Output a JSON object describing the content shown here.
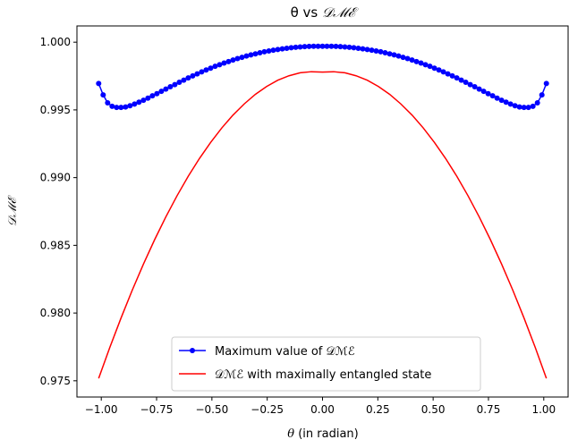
{
  "chart_data": {
    "type": "line",
    "title": {
      "prefix": "θ vs ",
      "symbol": "𝒟ℳℰ"
    },
    "xlabel": {
      "symbol": "θ",
      "text": " (in  radian)"
    },
    "ylabel": "𝒟ℳℰ",
    "xlim": [
      -1.11,
      1.11
    ],
    "ylim": [
      0.9738,
      1.0012
    ],
    "xticks": [
      -1.0,
      -0.75,
      -0.5,
      -0.25,
      0.0,
      0.25,
      0.5,
      0.75,
      1.0
    ],
    "xtick_labels": [
      "−1.00",
      "−0.75",
      "−0.50",
      "−0.25",
      "0.00",
      "0.25",
      "0.50",
      "0.75",
      "1.00"
    ],
    "yticks": [
      0.975,
      0.98,
      0.985,
      0.99,
      0.995,
      1.0
    ],
    "ytick_labels": [
      "0.975",
      "0.980",
      "0.985",
      "0.990",
      "0.995",
      "1.000"
    ],
    "grid": false,
    "legend_position": "lower-center",
    "series": [
      {
        "name": "Maximum value of 𝒟ℳℰ",
        "color": "#0000ff",
        "style": "line-with-markers",
        "x": [
          -1.0118,
          -0.9915,
          -0.9713,
          -0.951,
          -0.9308,
          -0.9106,
          -0.8903,
          -0.8701,
          -0.8498,
          -0.8296,
          -0.8094,
          -0.7891,
          -0.7689,
          -0.7486,
          -0.7284,
          -0.7082,
          -0.6879,
          -0.6677,
          -0.6474,
          -0.6272,
          -0.607,
          -0.5867,
          -0.5665,
          -0.5462,
          -0.526,
          -0.5058,
          -0.4855,
          -0.4653,
          -0.445,
          -0.4248,
          -0.4046,
          -0.3843,
          -0.3641,
          -0.3438,
          -0.3236,
          -0.3034,
          -0.2831,
          -0.2629,
          -0.2426,
          -0.2224,
          -0.2022,
          -0.1819,
          -0.1617,
          -0.1414,
          -0.1212,
          -0.101,
          -0.0807,
          -0.0605,
          -0.0402,
          -0.02,
          0.0,
          0.02,
          0.0402,
          0.0605,
          0.0807,
          0.101,
          0.1212,
          0.1414,
          0.1617,
          0.1819,
          0.2022,
          0.2224,
          0.2426,
          0.2629,
          0.2831,
          0.3034,
          0.3236,
          0.3438,
          0.3641,
          0.3843,
          0.4046,
          0.4248,
          0.445,
          0.4653,
          0.4855,
          0.5058,
          0.526,
          0.5462,
          0.5665,
          0.5867,
          0.607,
          0.6272,
          0.6474,
          0.6677,
          0.6879,
          0.7082,
          0.7284,
          0.7486,
          0.7689,
          0.7891,
          0.8094,
          0.8296,
          0.8498,
          0.8701,
          0.8903,
          0.9106,
          0.9308,
          0.951,
          0.9713,
          0.9915,
          1.0118
        ],
        "y": [
          0.99695,
          0.99611,
          0.99552,
          0.99527,
          0.99518,
          0.99518,
          0.99522,
          0.99531,
          0.99543,
          0.99557,
          0.99571,
          0.99587,
          0.99604,
          0.9962,
          0.99637,
          0.99654,
          0.99671,
          0.99687,
          0.99704,
          0.9972,
          0.99736,
          0.99751,
          0.99766,
          0.99781,
          0.99795,
          0.99808,
          0.99822,
          0.99834,
          0.99846,
          0.99857,
          0.99868,
          0.99879,
          0.99888,
          0.99898,
          0.99906,
          0.99914,
          0.99922,
          0.99929,
          0.99935,
          0.99941,
          0.99946,
          0.99951,
          0.99955,
          0.99959,
          0.99962,
          0.99965,
          0.99967,
          0.99969,
          0.9997,
          0.9997,
          0.9997,
          0.9997,
          0.9997,
          0.99969,
          0.99967,
          0.99965,
          0.99962,
          0.99959,
          0.99955,
          0.99951,
          0.99946,
          0.99941,
          0.99935,
          0.99929,
          0.99922,
          0.99914,
          0.99906,
          0.99898,
          0.99888,
          0.99879,
          0.99868,
          0.99857,
          0.99846,
          0.99834,
          0.99822,
          0.99808,
          0.99795,
          0.99781,
          0.99766,
          0.99751,
          0.99736,
          0.9972,
          0.99704,
          0.99687,
          0.99671,
          0.99654,
          0.99637,
          0.9962,
          0.99604,
          0.99587,
          0.99571,
          0.99557,
          0.99543,
          0.99531,
          0.99522,
          0.99518,
          0.99518,
          0.99527,
          0.99552,
          0.99611,
          0.99695
        ]
      },
      {
        "name": "𝒟ℳℰ with maximally entangled state",
        "color": "#ff0000",
        "style": "line",
        "x": [
          -1.0118,
          -0.9612,
          -0.9106,
          -0.86,
          -0.8094,
          -0.7588,
          -0.7082,
          -0.6576,
          -0.607,
          -0.5564,
          -0.5058,
          -0.4552,
          -0.4046,
          -0.354,
          -0.3034,
          -0.2528,
          -0.2022,
          -0.1516,
          -0.101,
          -0.0504,
          0.0,
          0.0504,
          0.101,
          0.1516,
          0.2022,
          0.2528,
          0.3034,
          0.354,
          0.4046,
          0.4552,
          0.5058,
          0.5564,
          0.607,
          0.6576,
          0.7082,
          0.7588,
          0.8094,
          0.86,
          0.9106,
          0.9612,
          1.0118
        ],
        "y": [
          0.97518,
          0.97747,
          0.97964,
          0.98169,
          0.98362,
          0.98542,
          0.9871,
          0.98866,
          0.9901,
          0.99141,
          0.9926,
          0.99367,
          0.99462,
          0.99544,
          0.99615,
          0.99673,
          0.99719,
          0.99752,
          0.99774,
          0.99782,
          0.99779,
          0.99782,
          0.99774,
          0.99752,
          0.99719,
          0.99673,
          0.99615,
          0.99544,
          0.99462,
          0.99367,
          0.9926,
          0.99141,
          0.9901,
          0.98866,
          0.9871,
          0.98542,
          0.98362,
          0.98169,
          0.97964,
          0.97747,
          0.97518
        ]
      }
    ]
  }
}
